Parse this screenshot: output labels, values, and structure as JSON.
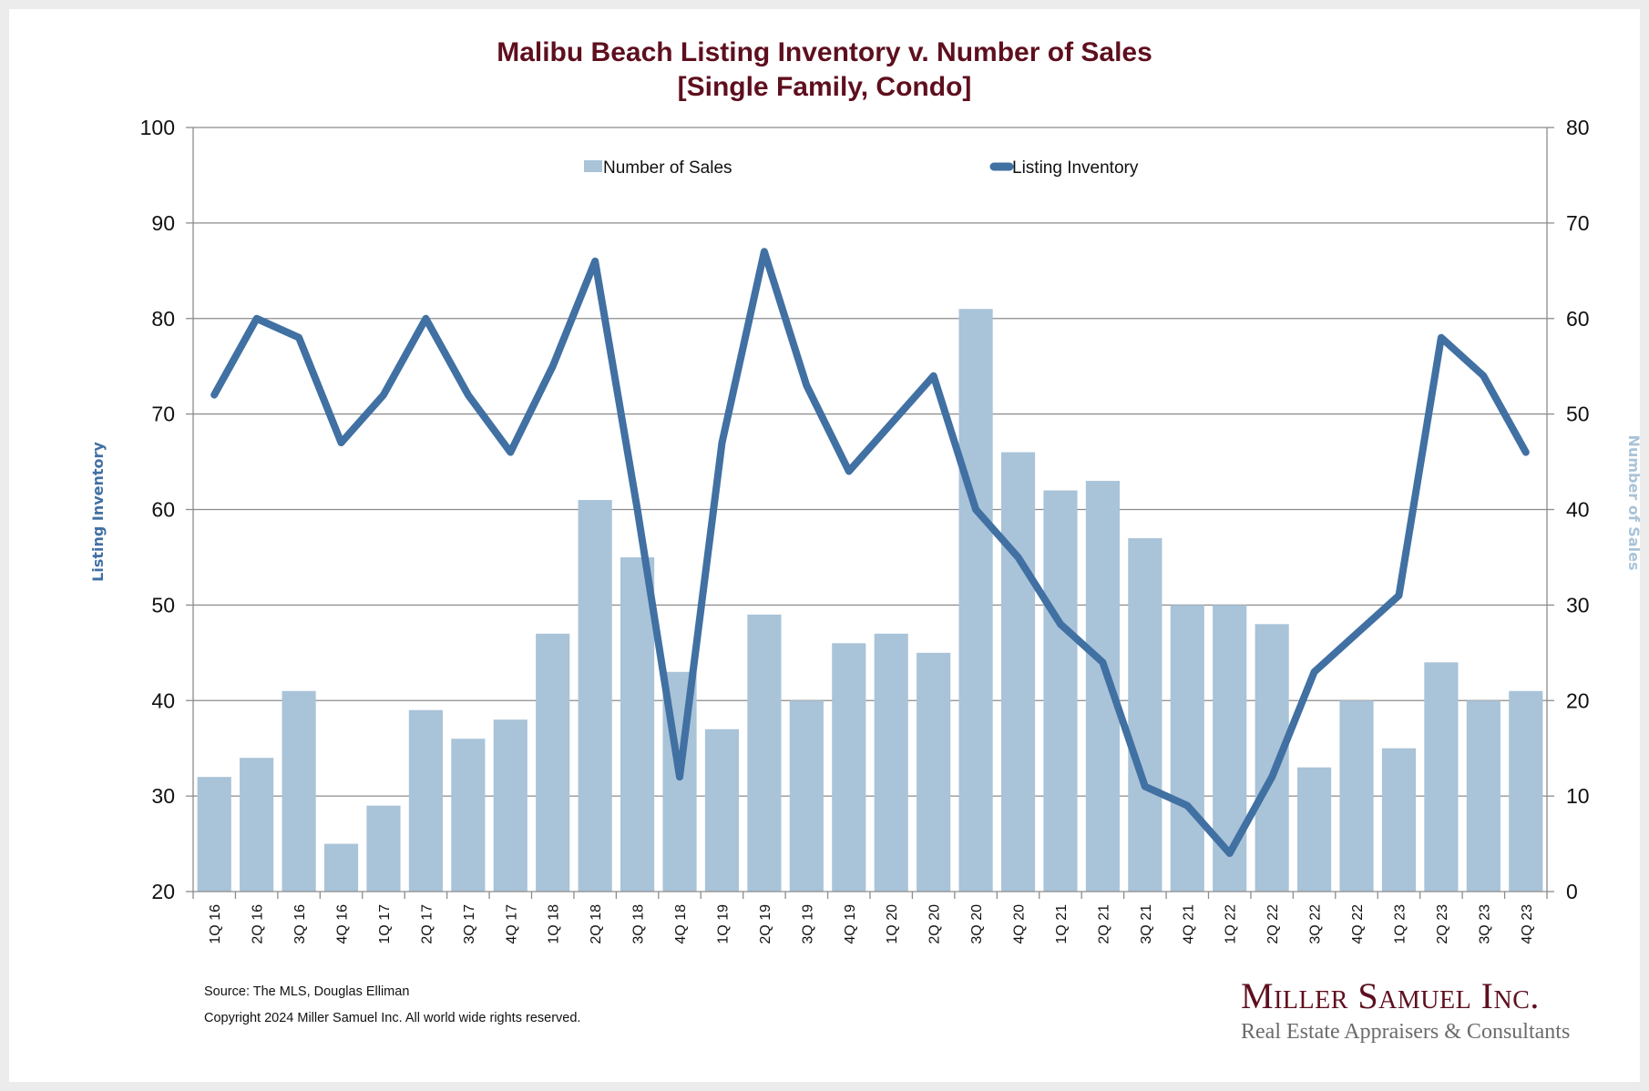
{
  "chart_data": {
    "type": "bar+line",
    "title": "Malibu Beach Listing Inventory v. Number of Sales",
    "subtitle": "[Single Family, Condo]",
    "categories": [
      "1Q 16",
      "2Q 16",
      "3Q 16",
      "4Q 16",
      "1Q 17",
      "2Q 17",
      "3Q 17",
      "4Q 17",
      "1Q 18",
      "2Q 18",
      "3Q 18",
      "4Q 18",
      "1Q 19",
      "2Q 19",
      "3Q 19",
      "4Q 19",
      "1Q 20",
      "2Q 20",
      "3Q 20",
      "4Q 20",
      "1Q 21",
      "2Q 21",
      "3Q 21",
      "4Q 21",
      "1Q 22",
      "2Q 22",
      "3Q 22",
      "4Q 22",
      "1Q 23",
      "2Q 23",
      "3Q 23",
      "4Q 23"
    ],
    "series": [
      {
        "name": "Number of Sales",
        "type": "bar",
        "axis": "right",
        "color": "#a9c3d8",
        "values": [
          12,
          14,
          21,
          5,
          9,
          19,
          16,
          18,
          27,
          41,
          35,
          23,
          17,
          29,
          20,
          26,
          27,
          25,
          61,
          46,
          42,
          43,
          37,
          30,
          30,
          28,
          13,
          20,
          15,
          24,
          20,
          21
        ]
      },
      {
        "name": "Listing Inventory",
        "type": "line",
        "axis": "left",
        "color": "#4170a3",
        "values": [
          72,
          80,
          78,
          67,
          72,
          80,
          72,
          66,
          75,
          86,
          60,
          32,
          67,
          87,
          73,
          64,
          69,
          74,
          60,
          55,
          48,
          44,
          31,
          29,
          24,
          32,
          43,
          47,
          51,
          78,
          74,
          66
        ]
      }
    ],
    "left_axis": {
      "label": "Listing Inventory",
      "min": 20,
      "max": 100,
      "ticks": [
        "20",
        "30",
        "40",
        "50",
        "60",
        "70",
        "80",
        "90",
        "100"
      ]
    },
    "right_axis": {
      "label": "Number of Sales",
      "min": 0,
      "max": 80,
      "ticks": [
        "0",
        "10",
        "20",
        "30",
        "40",
        "50",
        "60",
        "70",
        "80"
      ]
    },
    "grid": true,
    "legend": {
      "position": "top-center",
      "items": [
        "Number of Sales",
        "Listing Inventory"
      ]
    }
  },
  "footer": {
    "source": "Source: The MLS, Douglas Elliman",
    "copyright": "Copyright 2024 Miller Samuel Inc.  All world wide rights reserved."
  },
  "logo": {
    "name": "Miller Samuel Inc.",
    "tagline": "Real Estate Appraisers & Consultants"
  },
  "colors": {
    "title": "#5e0f1e",
    "bars": "#a9c3d8",
    "line": "#4170a3",
    "grid": "#8c8c8c"
  }
}
